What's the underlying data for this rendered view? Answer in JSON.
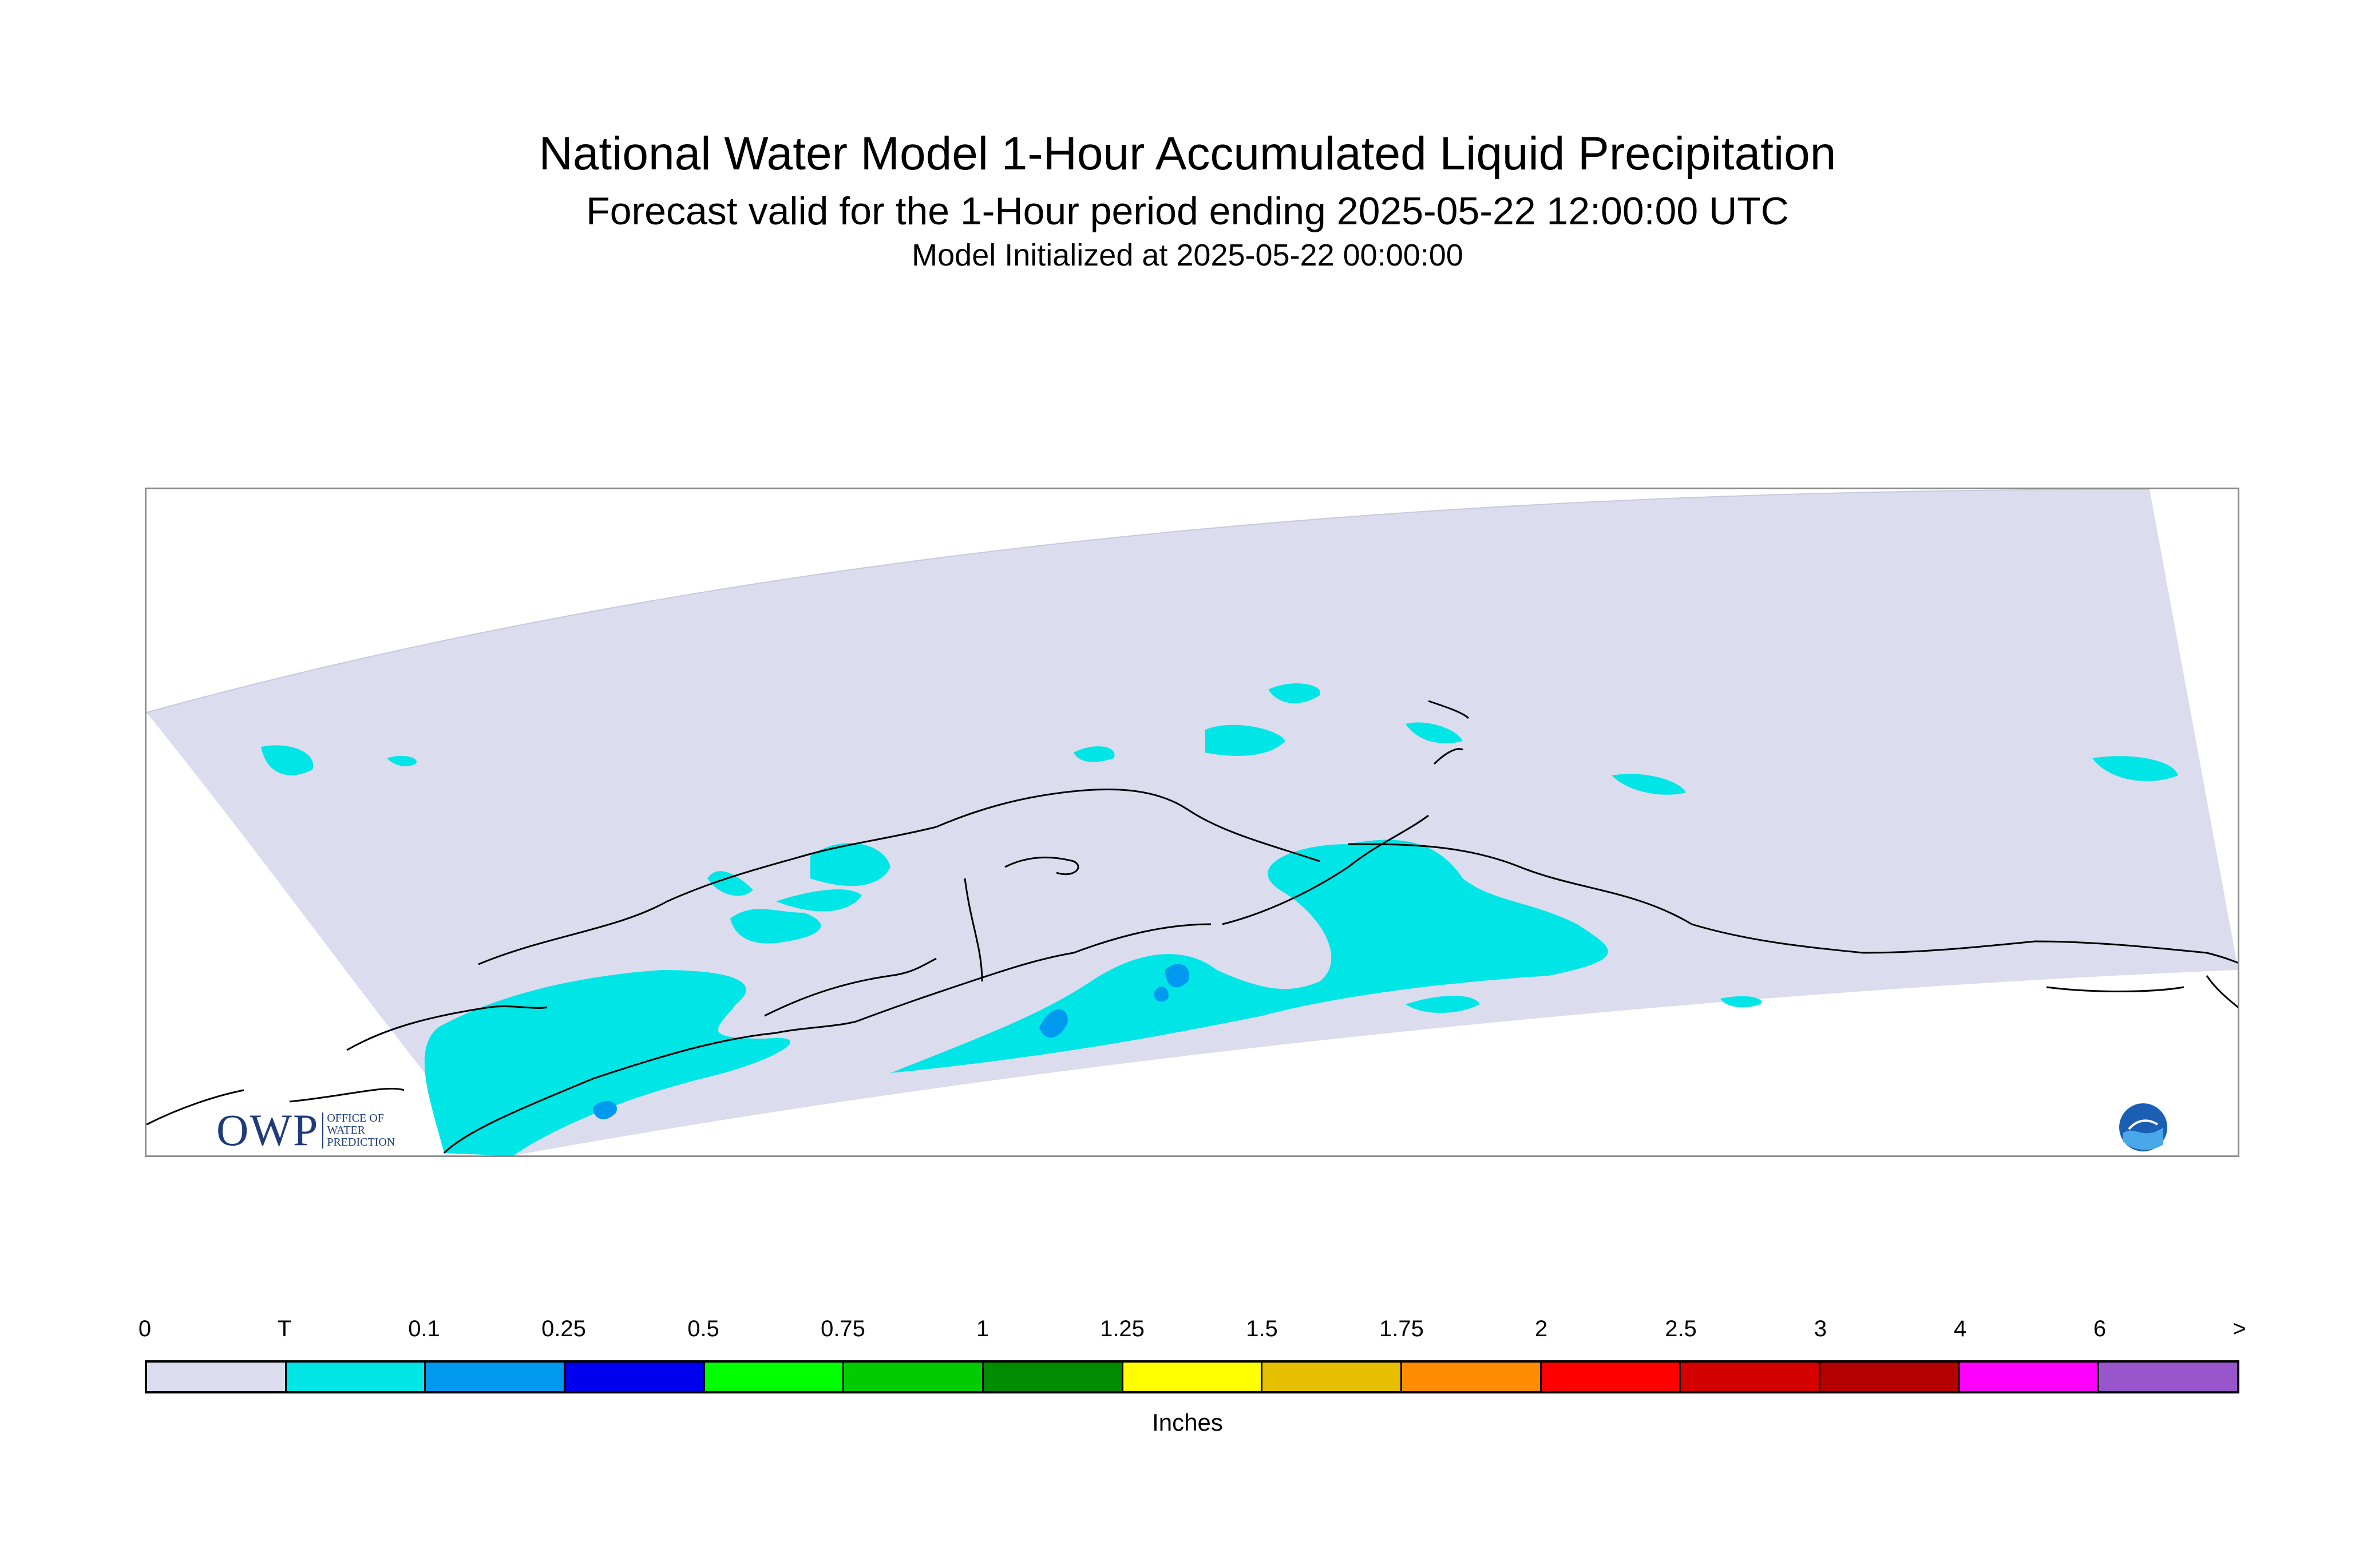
{
  "header": {
    "title": "National Water Model 1-Hour Accumulated Liquid Precipitation",
    "subtitle": "Forecast valid for the 1-Hour period ending 2025-05-22 12:00:00 UTC",
    "init": "Model Initialized at 2025-05-22 00:00:00"
  },
  "legend": {
    "units": "Inches",
    "ticks": [
      "0",
      "T",
      "0.1",
      "0.25",
      "0.5",
      "0.75",
      "1",
      "1.25",
      "1.5",
      "1.75",
      "2",
      "2.5",
      "3",
      "4",
      "6",
      ">"
    ],
    "colors": [
      "#dcdcef",
      "#00e5e5",
      "#0099f0",
      "#0000ee",
      "#00ff00",
      "#00cc00",
      "#008c00",
      "#ffff00",
      "#e6c000",
      "#ff8c00",
      "#ff0000",
      "#d50000",
      "#b50000",
      "#ff00ff",
      "#9955cc"
    ]
  },
  "logos": {
    "owp_big": "OWP",
    "owp_line1": "OFFICE OF",
    "owp_line2": "WATER",
    "owp_line3": "PREDICTION",
    "noaa": "NOAA"
  },
  "map": {
    "domain_color": "#dcdcef",
    "light_precip_color": "#00e5e5",
    "moderate_precip_color": "#0099f0",
    "coast_color": "#000000"
  }
}
